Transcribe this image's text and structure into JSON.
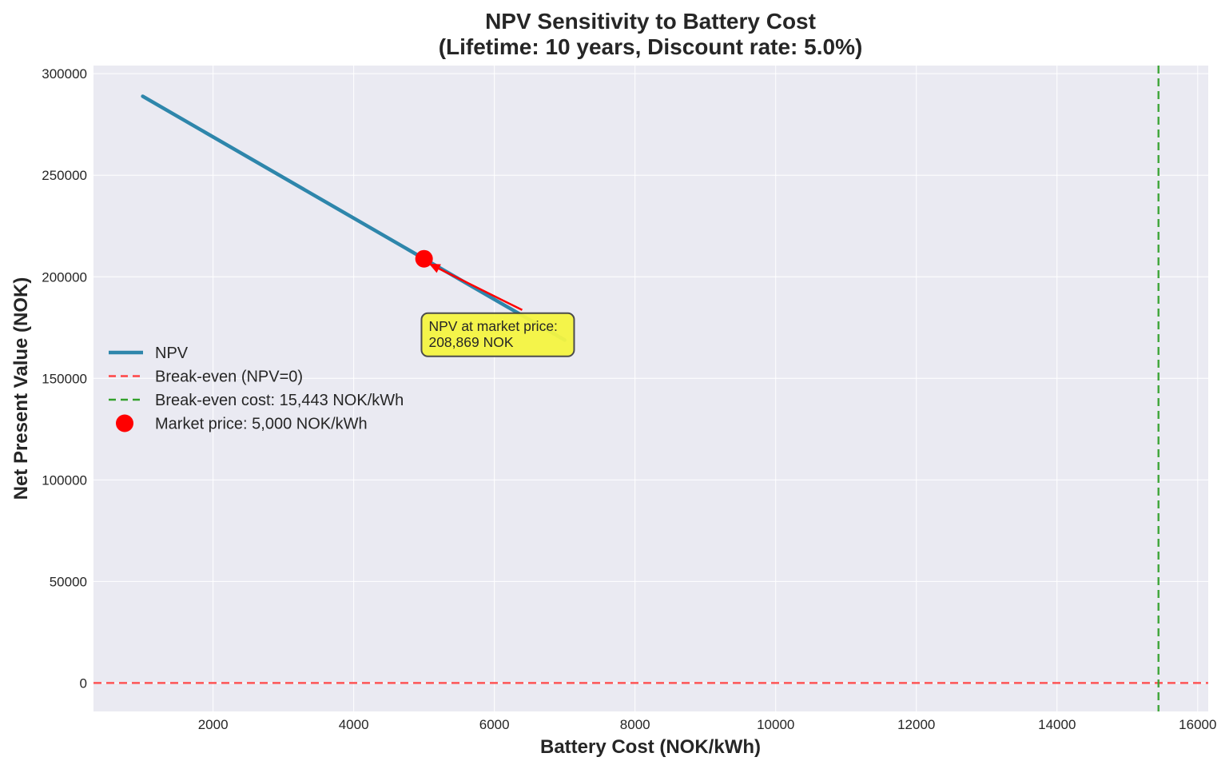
{
  "chart_data": {
    "type": "line",
    "title": "NPV Sensitivity to Battery Cost",
    "subtitle": "(Lifetime: 10 years, Discount rate: 5.0%)",
    "xlabel": "Battery Cost (NOK/kWh)",
    "ylabel": "Net Present Value (NOK)",
    "xlim": [
      300,
      16150
    ],
    "ylim": [
      -14000,
      304000
    ],
    "xticks": [
      2000,
      4000,
      6000,
      8000,
      10000,
      12000,
      14000,
      16000
    ],
    "yticks": [
      0,
      50000,
      100000,
      150000,
      200000,
      250000,
      300000
    ],
    "grid": true,
    "legend_position": "center-left",
    "series": [
      {
        "name": "NPV",
        "color": "#2e86ab",
        "x": [
          1000,
          7000
        ],
        "values": [
          288869,
          168869
        ]
      }
    ],
    "reference_lines": [
      {
        "name": "Break-even (NPV=0)",
        "orientation": "horizontal",
        "value": 0,
        "color": "#ff4444",
        "style": "dashed"
      },
      {
        "name": "Break-even cost: 15,443 NOK/kWh",
        "orientation": "vertical",
        "value": 15443,
        "color": "#33a02c",
        "style": "dashed"
      }
    ],
    "marker": {
      "name": "Market price: 5,000 NOK/kWh",
      "x": 5000,
      "y": 208869,
      "color": "#ff0000"
    },
    "annotation": {
      "lines": [
        "NPV at market price:",
        "208,869 NOK"
      ],
      "target_x": 5000,
      "target_y": 208869,
      "text_x": 6100,
      "text_y": 175000,
      "box_color": "#f5f542",
      "arrow_color": "#ff0000"
    },
    "legend": [
      {
        "label": "NPV",
        "kind": "line",
        "color": "#2e86ab"
      },
      {
        "label": "Break-even (NPV=0)",
        "kind": "dash",
        "color": "#ff4444"
      },
      {
        "label": "Break-even cost: 15,443 NOK/kWh",
        "kind": "dash",
        "color": "#33a02c"
      },
      {
        "label": "Market price: 5,000 NOK/kWh",
        "kind": "dot",
        "color": "#ff0000"
      }
    ]
  }
}
